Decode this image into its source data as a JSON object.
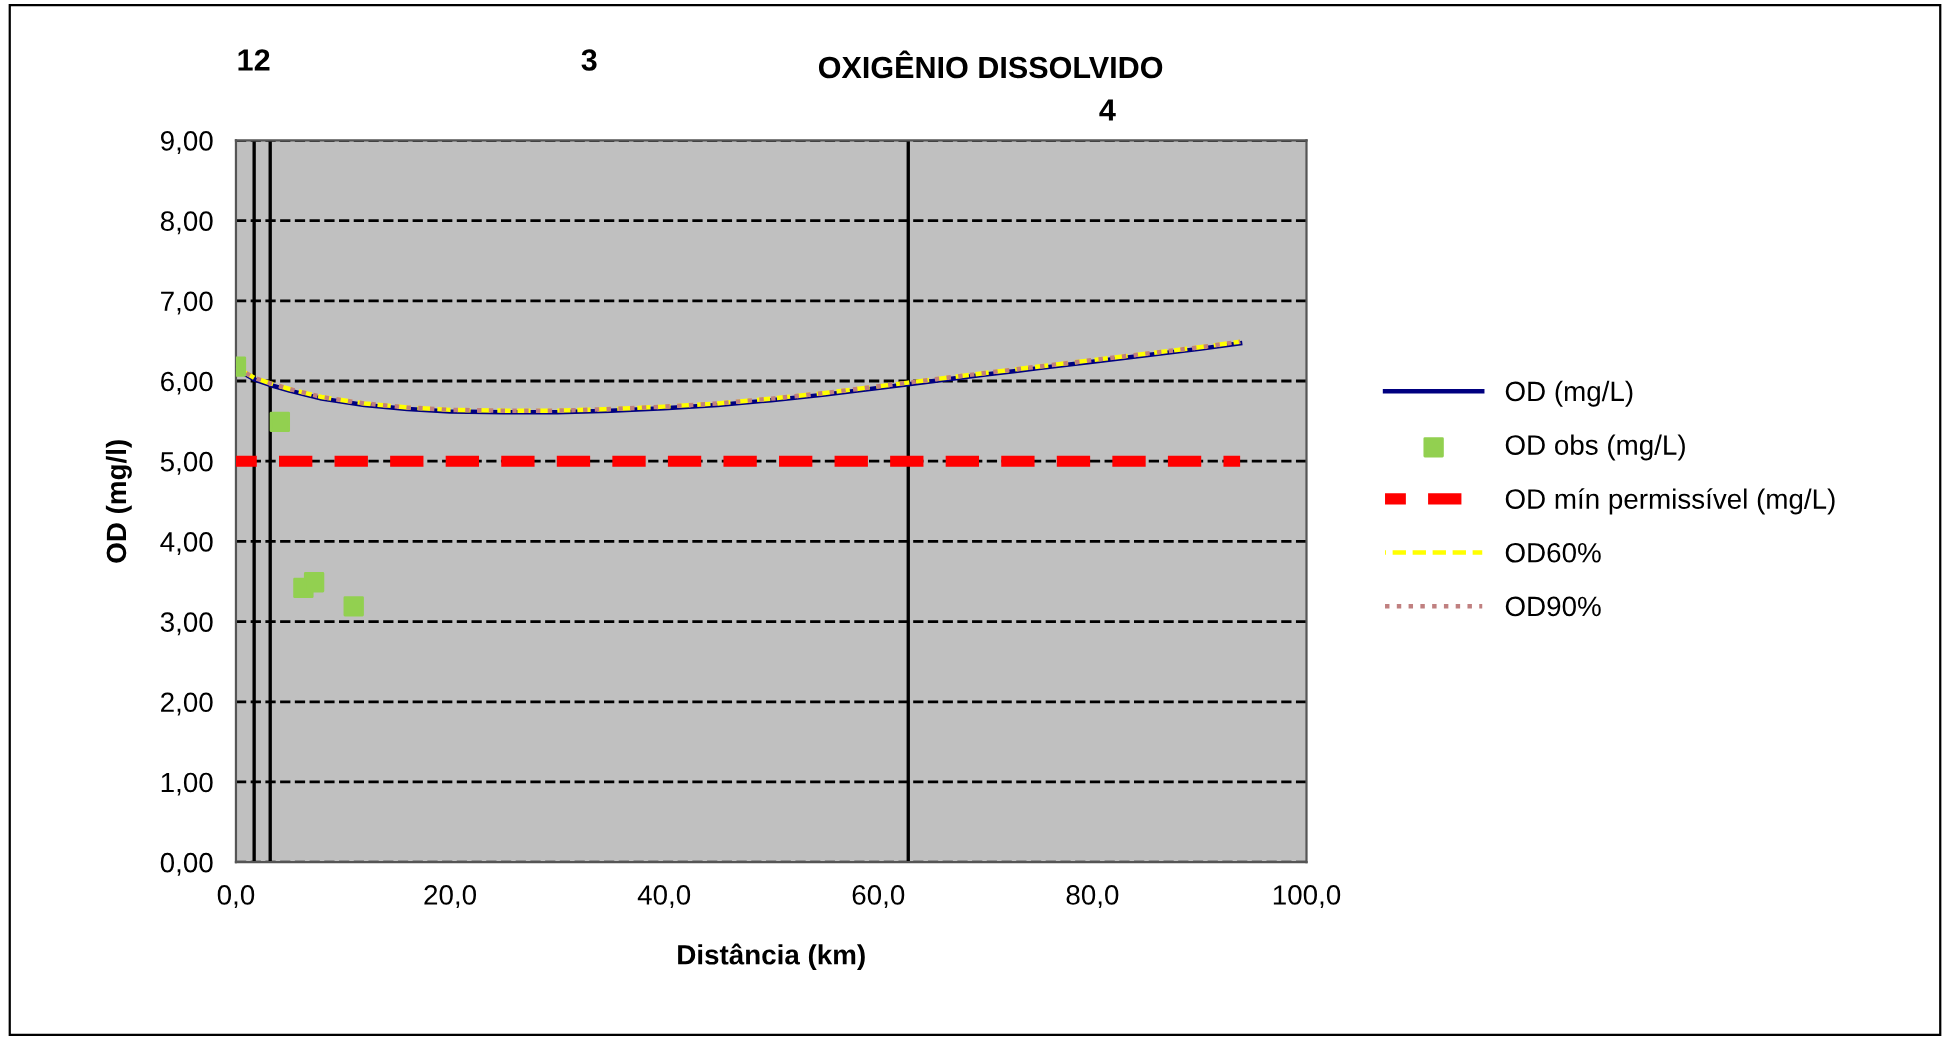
{
  "chart_data": {
    "type": "line",
    "title": "OXIGÊNIO DISSOLVIDO",
    "xlabel": "Distância (km)",
    "ylabel": "OD (mg/l)",
    "xlim": [
      0,
      100
    ],
    "xticks": [
      {
        "value": 0,
        "label": "0,0"
      },
      {
        "value": 20,
        "label": "20,0"
      },
      {
        "value": 40,
        "label": "40,0"
      },
      {
        "value": 60,
        "label": "60,0"
      },
      {
        "value": 80,
        "label": "80,0"
      },
      {
        "value": 100,
        "label": "100,0"
      }
    ],
    "ylim": [
      0,
      9
    ],
    "yticks": [
      {
        "value": 0,
        "label": "0,00"
      },
      {
        "value": 1,
        "label": "1,00"
      },
      {
        "value": 2,
        "label": "2,00"
      },
      {
        "value": 3,
        "label": "3,00"
      },
      {
        "value": 4,
        "label": "4,00"
      },
      {
        "value": 5,
        "label": "5,00"
      },
      {
        "value": 6,
        "label": "6,00"
      },
      {
        "value": 7,
        "label": "7,00"
      },
      {
        "value": 8,
        "label": "8,00"
      },
      {
        "value": 9,
        "label": "9,00"
      }
    ],
    "grid": "y",
    "legend": "right",
    "series": [
      {
        "name": "OD (mg/L)",
        "color": "#000080",
        "line_style": "solid",
        "x": [
          0,
          1.7,
          3.2,
          5,
          8,
          12,
          16,
          20,
          25,
          30,
          35,
          40,
          45,
          50,
          55,
          62.8,
          70,
          75,
          80,
          85,
          90,
          93.8
        ],
        "values": [
          6.15,
          6.02,
          5.95,
          5.88,
          5.78,
          5.7,
          5.65,
          5.62,
          5.61,
          5.61,
          5.63,
          5.66,
          5.7,
          5.76,
          5.83,
          5.96,
          6.08,
          6.16,
          6.24,
          6.32,
          6.4,
          6.47
        ]
      },
      {
        "name": "OD obs (mg/L)",
        "type": "scatter",
        "color": "#92d050",
        "marker": "square",
        "x": [
          0,
          4.1,
          6.3,
          7.3,
          11.0
        ],
        "values": [
          6.18,
          5.49,
          3.42,
          3.49,
          3.19
        ]
      },
      {
        "name": "OD mín permissível (mg/L)",
        "color": "#ff0000",
        "line_style": "dashed",
        "x": [
          0,
          93.8
        ],
        "values": [
          5,
          5
        ]
      },
      {
        "name": "OD60%",
        "color": "#ffff00",
        "line_style": "dashed",
        "x": [
          0,
          1.7,
          3.2,
          5,
          8,
          12,
          16,
          20,
          25,
          30,
          35,
          40,
          45,
          50,
          55,
          62.8,
          70,
          75,
          80,
          85,
          90,
          93.8
        ],
        "values": [
          6.17,
          6.04,
          5.97,
          5.9,
          5.8,
          5.72,
          5.67,
          5.64,
          5.63,
          5.63,
          5.65,
          5.68,
          5.72,
          5.78,
          5.85,
          5.98,
          6.1,
          6.18,
          6.26,
          6.34,
          6.42,
          6.49
        ]
      },
      {
        "name": "OD90%",
        "color": "#c08080",
        "line_style": "dotted",
        "x": [
          0,
          1.7,
          3.2,
          5,
          8,
          12,
          16,
          20,
          25,
          30,
          35,
          40,
          45,
          50,
          55,
          62.8,
          70,
          75,
          80,
          85,
          90,
          93.8
        ],
        "values": [
          6.17,
          6.04,
          5.97,
          5.9,
          5.8,
          5.72,
          5.67,
          5.64,
          5.63,
          5.63,
          5.65,
          5.68,
          5.72,
          5.78,
          5.85,
          5.98,
          6.1,
          6.18,
          6.26,
          6.34,
          6.42,
          6.49
        ]
      }
    ],
    "ref_lines": [
      {
        "axis": "x",
        "value": 1.7,
        "color": "#000000"
      },
      {
        "axis": "x",
        "value": 3.2,
        "color": "#000000"
      },
      {
        "axis": "x",
        "value": 62.8,
        "color": "#000000"
      }
    ],
    "annotations": [
      "1",
      "2",
      "3",
      "4"
    ]
  }
}
